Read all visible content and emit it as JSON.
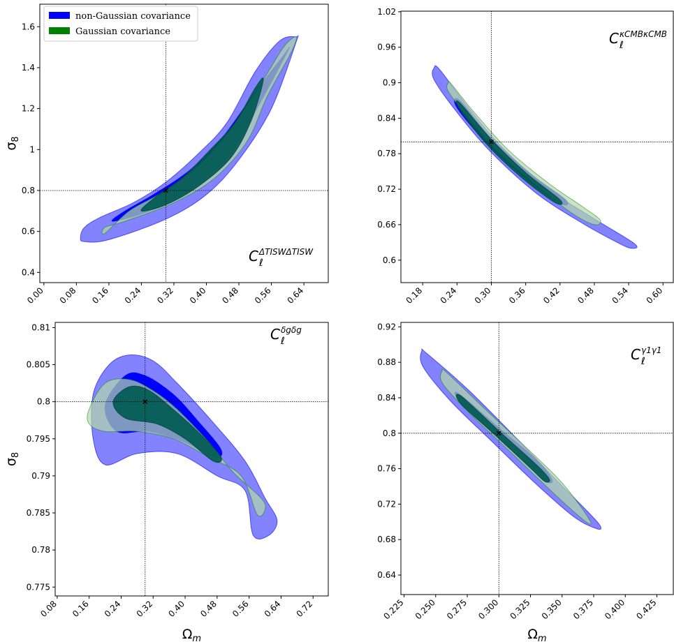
{
  "legend": [
    {
      "label": "non-Gaussian covariance",
      "color": "#0000ff"
    },
    {
      "label": "Gaussian covariance",
      "color": "#008000"
    }
  ],
  "colors": {
    "ng_outer": "#0000ff",
    "ng_inner": "#0000ff",
    "g_outer": "#8fbc8f",
    "g_inner": "#005a50"
  },
  "chart_data": [
    {
      "type": "scatter",
      "panel": "top-left",
      "annotation": {
        "base": "C",
        "sub": "ℓ",
        "sup": "ΔT_ISW ΔT_ISW"
      },
      "xlabel": "",
      "ylabel": "σ8",
      "xlim": [
        -0.01,
        0.7
      ],
      "ylim": [
        0.35,
        1.71
      ],
      "xticks": [
        "0.00",
        "0.08",
        "0.16",
        "0.24",
        "0.32",
        "0.40",
        "0.48",
        "0.56",
        "0.64"
      ],
      "xtick_values": [
        0.0,
        0.08,
        0.16,
        0.24,
        0.32,
        0.4,
        0.48,
        0.56,
        0.64
      ],
      "yticks": [
        "0.4",
        "0.6",
        "0.8",
        "1",
        "1.2",
        "1.4",
        "1.6"
      ],
      "ytick_values": [
        0.4,
        0.6,
        0.8,
        1.0,
        1.2,
        1.4,
        1.6
      ],
      "fiducial": {
        "x": 0.3,
        "y": 0.8
      },
      "series": [
        {
          "name": "non-Gaussian covariance",
          "level": "outer",
          "points": [
            [
              0.09,
              0.57
            ],
            [
              0.1,
              0.55
            ],
            [
              0.16,
              0.56
            ],
            [
              0.3,
              0.66
            ],
            [
              0.4,
              0.78
            ],
            [
              0.48,
              0.95
            ],
            [
              0.56,
              1.2
            ],
            [
              0.62,
              1.52
            ],
            [
              0.62,
              1.55
            ],
            [
              0.58,
              1.53
            ],
            [
              0.52,
              1.38
            ],
            [
              0.45,
              1.13
            ],
            [
              0.38,
              0.98
            ],
            [
              0.3,
              0.84
            ],
            [
              0.22,
              0.74
            ],
            [
              0.14,
              0.67
            ],
            [
              0.1,
              0.62
            ]
          ]
        },
        {
          "name": "non-Gaussian covariance",
          "level": "inner",
          "points": [
            [
              0.17,
              0.65
            ],
            [
              0.26,
              0.7
            ],
            [
              0.36,
              0.8
            ],
            [
              0.46,
              0.98
            ],
            [
              0.53,
              1.22
            ],
            [
              0.6,
              1.48
            ],
            [
              0.59,
              1.46
            ],
            [
              0.52,
              1.28
            ],
            [
              0.44,
              1.06
            ],
            [
              0.36,
              0.9
            ],
            [
              0.27,
              0.78
            ],
            [
              0.2,
              0.7
            ]
          ]
        },
        {
          "name": "Gaussian covariance",
          "level": "outer",
          "points": [
            [
              0.15,
              0.59
            ],
            [
              0.15,
              0.62
            ],
            [
              0.2,
              0.65
            ],
            [
              0.32,
              0.74
            ],
            [
              0.42,
              0.86
            ],
            [
              0.5,
              1.04
            ],
            [
              0.55,
              1.26
            ],
            [
              0.61,
              1.48
            ],
            [
              0.62,
              1.55
            ],
            [
              0.59,
              1.5
            ],
            [
              0.54,
              1.34
            ],
            [
              0.46,
              1.1
            ],
            [
              0.38,
              0.92
            ],
            [
              0.29,
              0.79
            ],
            [
              0.21,
              0.7
            ]
          ]
        },
        {
          "name": "Gaussian covariance",
          "level": "inner",
          "points": [
            [
              0.24,
              0.7
            ],
            [
              0.3,
              0.73
            ],
            [
              0.38,
              0.82
            ],
            [
              0.46,
              0.96
            ],
            [
              0.51,
              1.14
            ],
            [
              0.54,
              1.34
            ],
            [
              0.52,
              1.3
            ],
            [
              0.47,
              1.13
            ],
            [
              0.41,
              1.0
            ],
            [
              0.34,
              0.86
            ],
            [
              0.27,
              0.76
            ]
          ]
        }
      ]
    },
    {
      "type": "scatter",
      "panel": "top-right",
      "annotation": {
        "base": "C",
        "sub": "ℓ",
        "sup": "κ_CMB κ_CMB"
      },
      "xlabel": "",
      "ylabel": "",
      "xlim": [
        0.142,
        0.618
      ],
      "ylim": [
        0.562,
        1.021
      ],
      "xticks": [
        "0.18",
        "0.24",
        "0.30",
        "0.36",
        "0.42",
        "0.48",
        "0.54",
        "0.60"
      ],
      "xtick_values": [
        0.18,
        0.24,
        0.3,
        0.36,
        0.42,
        0.48,
        0.54,
        0.6
      ],
      "yticks": [
        "0.6",
        "0.66",
        "0.72",
        "0.78",
        "0.84",
        "0.9",
        "0.96",
        "1.02"
      ],
      "ytick_values": [
        0.6,
        0.66,
        0.72,
        0.78,
        0.84,
        0.9,
        0.96,
        1.02
      ],
      "fiducial": {
        "x": 0.3,
        "y": 0.8
      },
      "series": [
        {
          "name": "non-Gaussian covariance",
          "level": "outer",
          "points": [
            [
              0.2,
              0.925
            ],
            [
              0.21,
              0.922
            ],
            [
              0.26,
              0.858
            ],
            [
              0.32,
              0.79
            ],
            [
              0.4,
              0.72
            ],
            [
              0.48,
              0.67
            ],
            [
              0.55,
              0.628
            ],
            [
              0.545,
              0.62
            ],
            [
              0.52,
              0.63
            ],
            [
              0.46,
              0.662
            ],
            [
              0.38,
              0.712
            ],
            [
              0.3,
              0.782
            ],
            [
              0.24,
              0.85
            ],
            [
              0.2,
              0.905
            ]
          ]
        },
        {
          "name": "non-Gaussian covariance",
          "level": "inner",
          "points": [
            [
              0.245,
              0.87
            ],
            [
              0.3,
              0.806
            ],
            [
              0.37,
              0.745
            ],
            [
              0.43,
              0.702
            ],
            [
              0.42,
              0.696
            ],
            [
              0.36,
              0.738
            ],
            [
              0.29,
              0.8
            ],
            [
              0.24,
              0.858
            ]
          ]
        },
        {
          "name": "Gaussian covariance",
          "level": "outer",
          "points": [
            [
              0.225,
              0.9
            ],
            [
              0.23,
              0.898
            ],
            [
              0.27,
              0.85
            ],
            [
              0.33,
              0.786
            ],
            [
              0.4,
              0.73
            ],
            [
              0.46,
              0.69
            ],
            [
              0.49,
              0.668
            ],
            [
              0.48,
              0.66
            ],
            [
              0.44,
              0.68
            ],
            [
              0.38,
              0.725
            ],
            [
              0.31,
              0.784
            ],
            [
              0.26,
              0.84
            ],
            [
              0.225,
              0.885
            ]
          ]
        },
        {
          "name": "Gaussian covariance",
          "level": "inner",
          "points": [
            [
              0.245,
              0.866
            ],
            [
              0.3,
              0.804
            ],
            [
              0.36,
              0.748
            ],
            [
              0.42,
              0.702
            ],
            [
              0.41,
              0.698
            ],
            [
              0.35,
              0.742
            ],
            [
              0.29,
              0.798
            ],
            [
              0.245,
              0.855
            ]
          ]
        }
      ]
    },
    {
      "type": "scatter",
      "panel": "bottom-left",
      "annotation": {
        "base": "C",
        "sub": "ℓ",
        "sup": "δ_g δ_g"
      },
      "xlabel": "Ωm",
      "ylabel": "σ8",
      "xlim": [
        0.075,
        0.758
      ],
      "ylim": [
        0.7738,
        0.8107
      ],
      "xticks": [
        "0.08",
        "0.16",
        "0.24",
        "0.32",
        "0.40",
        "0.48",
        "0.56",
        "0.64",
        "0.72"
      ],
      "xtick_values": [
        0.08,
        0.16,
        0.24,
        0.32,
        0.4,
        0.48,
        0.56,
        0.64,
        0.72
      ],
      "yticks": [
        "0.775",
        "0.78",
        "0.785",
        "0.79",
        "0.795",
        "0.8",
        "0.805",
        "0.81"
      ],
      "ytick_values": [
        0.775,
        0.78,
        0.785,
        0.79,
        0.795,
        0.8,
        0.805,
        0.81
      ],
      "fiducial": {
        "x": 0.3,
        "y": 0.8
      },
      "series": [
        {
          "name": "non-Gaussian covariance",
          "level": "outer",
          "points": [
            [
              0.17,
              0.801
            ],
            [
              0.21,
              0.805
            ],
            [
              0.26,
              0.8063
            ],
            [
              0.32,
              0.8055
            ],
            [
              0.38,
              0.8025
            ],
            [
              0.47,
              0.7972
            ],
            [
              0.55,
              0.792
            ],
            [
              0.6,
              0.787
            ],
            [
              0.63,
              0.784
            ],
            [
              0.61,
              0.782
            ],
            [
              0.57,
              0.782
            ],
            [
              0.55,
              0.788
            ],
            [
              0.48,
              0.79
            ],
            [
              0.38,
              0.793
            ],
            [
              0.28,
              0.793
            ],
            [
              0.2,
              0.7915
            ],
            [
              0.17,
              0.795
            ]
          ]
        },
        {
          "name": "non-Gaussian covariance",
          "level": "inner",
          "points": [
            [
              0.2,
              0.7995
            ],
            [
              0.25,
              0.8035
            ],
            [
              0.3,
              0.8035
            ],
            [
              0.37,
              0.801
            ],
            [
              0.43,
              0.7975
            ],
            [
              0.49,
              0.7935
            ],
            [
              0.47,
              0.7925
            ],
            [
              0.4,
              0.7945
            ],
            [
              0.31,
              0.796
            ],
            [
              0.23,
              0.796
            ]
          ]
        },
        {
          "name": "Gaussian covariance",
          "level": "outer",
          "points": [
            [
              0.16,
              0.799
            ],
            [
              0.2,
              0.8025
            ],
            [
              0.26,
              0.803
            ],
            [
              0.32,
              0.8015
            ],
            [
              0.38,
              0.799
            ],
            [
              0.46,
              0.7945
            ],
            [
              0.52,
              0.7905
            ],
            [
              0.59,
              0.787
            ],
            [
              0.6,
              0.7855
            ],
            [
              0.58,
              0.7848
            ],
            [
              0.54,
              0.79
            ],
            [
              0.46,
              0.7925
            ],
            [
              0.37,
              0.795
            ],
            [
              0.28,
              0.796
            ],
            [
              0.2,
              0.796
            ],
            [
              0.16,
              0.797
            ]
          ]
        },
        {
          "name": "Gaussian covariance",
          "level": "inner",
          "points": [
            [
              0.22,
              0.8
            ],
            [
              0.26,
              0.802
            ],
            [
              0.31,
              0.8015
            ],
            [
              0.38,
              0.7985
            ],
            [
              0.44,
              0.7955
            ],
            [
              0.49,
              0.7925
            ],
            [
              0.47,
              0.792
            ],
            [
              0.4,
              0.795
            ],
            [
              0.33,
              0.797
            ],
            [
              0.25,
              0.7978
            ]
          ]
        }
      ]
    },
    {
      "type": "scatter",
      "panel": "bottom-right",
      "annotation": {
        "base": "C",
        "sub": "ℓ",
        "sup": "γ1 γ1"
      },
      "xlabel": "Ωm",
      "ylabel": "",
      "xlim": [
        0.2225,
        0.438
      ],
      "ylim": [
        0.618,
        0.925
      ],
      "xticks": [
        "0.225",
        "0.250",
        "0.275",
        "0.300",
        "0.325",
        "0.350",
        "0.375",
        "0.400",
        "0.425"
      ],
      "xtick_values": [
        0.225,
        0.25,
        0.275,
        0.3,
        0.325,
        0.35,
        0.375,
        0.4,
        0.425
      ],
      "yticks": [
        "0.64",
        "0.68",
        "0.72",
        "0.76",
        "0.8",
        "0.84",
        "0.88",
        "0.92"
      ],
      "ytick_values": [
        0.64,
        0.68,
        0.72,
        0.76,
        0.8,
        0.84,
        0.88,
        0.92
      ],
      "fiducial": {
        "x": 0.3,
        "y": 0.8
      },
      "series": [
        {
          "name": "non-Gaussian covariance",
          "level": "outer",
          "points": [
            [
              0.239,
              0.893
            ],
            [
              0.243,
              0.89
            ],
            [
              0.275,
              0.85
            ],
            [
              0.31,
              0.8
            ],
            [
              0.345,
              0.748
            ],
            [
              0.37,
              0.712
            ],
            [
              0.38,
              0.696
            ],
            [
              0.378,
              0.692
            ],
            [
              0.36,
              0.705
            ],
            [
              0.33,
              0.742
            ],
            [
              0.295,
              0.79
            ],
            [
              0.262,
              0.836
            ],
            [
              0.24,
              0.875
            ]
          ]
        },
        {
          "name": "non-Gaussian covariance",
          "level": "inner",
          "points": [
            [
              0.268,
              0.845
            ],
            [
              0.3,
              0.806
            ],
            [
              0.33,
              0.77
            ],
            [
              0.342,
              0.748
            ],
            [
              0.338,
              0.745
            ],
            [
              0.325,
              0.762
            ],
            [
              0.298,
              0.796
            ],
            [
              0.27,
              0.834
            ]
          ]
        },
        {
          "name": "Gaussian covariance",
          "level": "outer",
          "points": [
            [
              0.255,
              0.87
            ],
            [
              0.259,
              0.868
            ],
            [
              0.29,
              0.826
            ],
            [
              0.32,
              0.786
            ],
            [
              0.35,
              0.744
            ],
            [
              0.371,
              0.704
            ],
            [
              0.369,
              0.7
            ],
            [
              0.345,
              0.73
            ],
            [
              0.312,
              0.775
            ],
            [
              0.28,
              0.818
            ],
            [
              0.256,
              0.855
            ]
          ]
        },
        {
          "name": "Gaussian covariance",
          "level": "inner",
          "points": [
            [
              0.27,
              0.842
            ],
            [
              0.302,
              0.8
            ],
            [
              0.33,
              0.764
            ],
            [
              0.34,
              0.748
            ],
            [
              0.336,
              0.746
            ],
            [
              0.324,
              0.762
            ],
            [
              0.297,
              0.798
            ],
            [
              0.27,
              0.833
            ]
          ]
        }
      ]
    }
  ]
}
